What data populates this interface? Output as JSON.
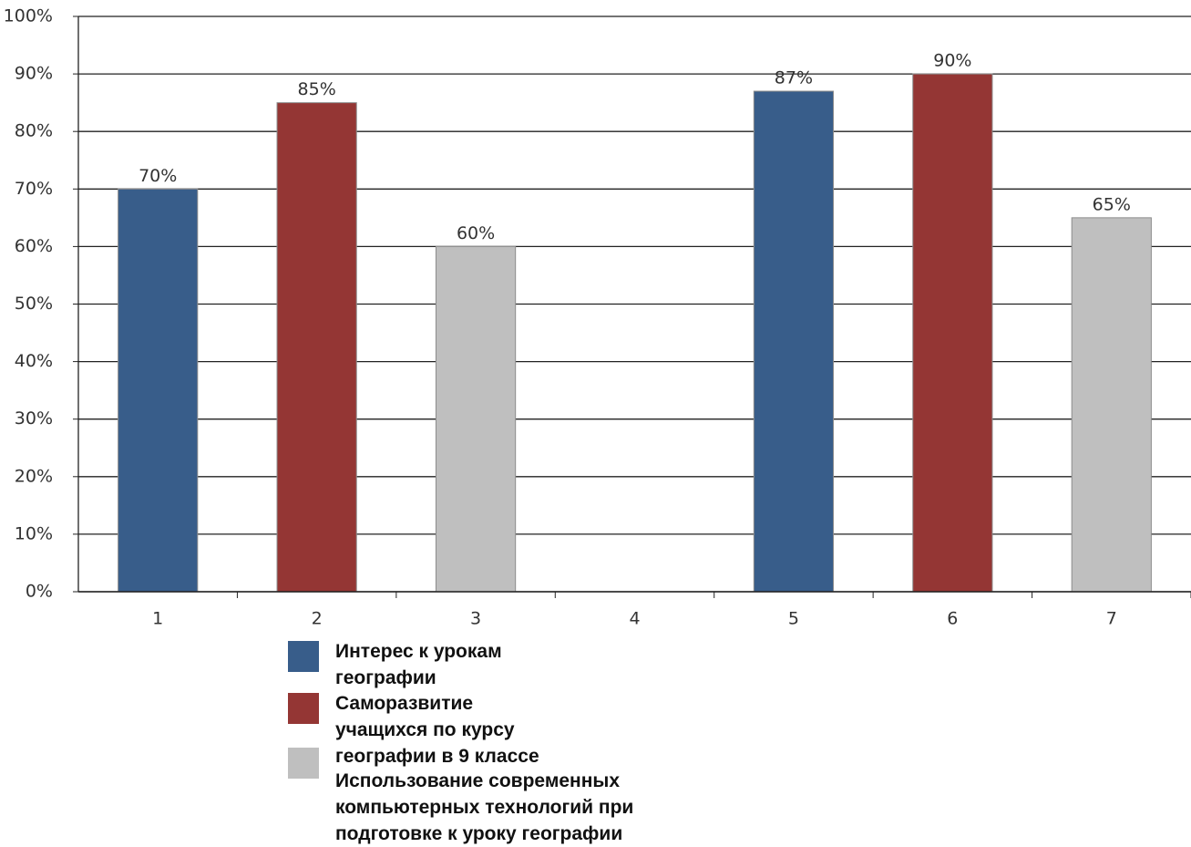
{
  "chart_data": {
    "type": "bar",
    "categories": [
      "1",
      "2",
      "3",
      "4",
      "5",
      "6",
      "7"
    ],
    "series": [
      {
        "name": "Интерес к урокам географии",
        "color": "#385d8a",
        "values": [
          70,
          null,
          null,
          null,
          87,
          null,
          null
        ],
        "value_labels": [
          "70%",
          null,
          null,
          null,
          "87%",
          null,
          null
        ]
      },
      {
        "name": "Саморазвитие учащихся по курсу географии в 9 классе",
        "color": "#943634",
        "values": [
          null,
          85,
          null,
          null,
          null,
          90,
          null
        ],
        "value_labels": [
          null,
          "85%",
          null,
          null,
          null,
          "90%",
          null
        ]
      },
      {
        "name": "Использование современных компьютерных технологий при подготовке к уроку географии",
        "color": "#bfbfbf",
        "values": [
          null,
          null,
          60,
          null,
          null,
          null,
          65
        ],
        "value_labels": [
          null,
          null,
          "60%",
          null,
          null,
          null,
          "65%"
        ]
      }
    ],
    "ylim": [
      0,
      100
    ],
    "yticks": [
      {
        "value": 0,
        "label": "0%"
      },
      {
        "value": 10,
        "label": "10%"
      },
      {
        "value": 20,
        "label": "20%"
      },
      {
        "value": 30,
        "label": "30%"
      },
      {
        "value": 40,
        "label": "40%"
      },
      {
        "value": 50,
        "label": "50%"
      },
      {
        "value": 60,
        "label": "60%"
      },
      {
        "value": 70,
        "label": "70%"
      },
      {
        "value": 80,
        "label": "80%"
      },
      {
        "value": 90,
        "label": "90%"
      },
      {
        "value": 100,
        "label": "100%"
      }
    ],
    "grid": true
  }
}
